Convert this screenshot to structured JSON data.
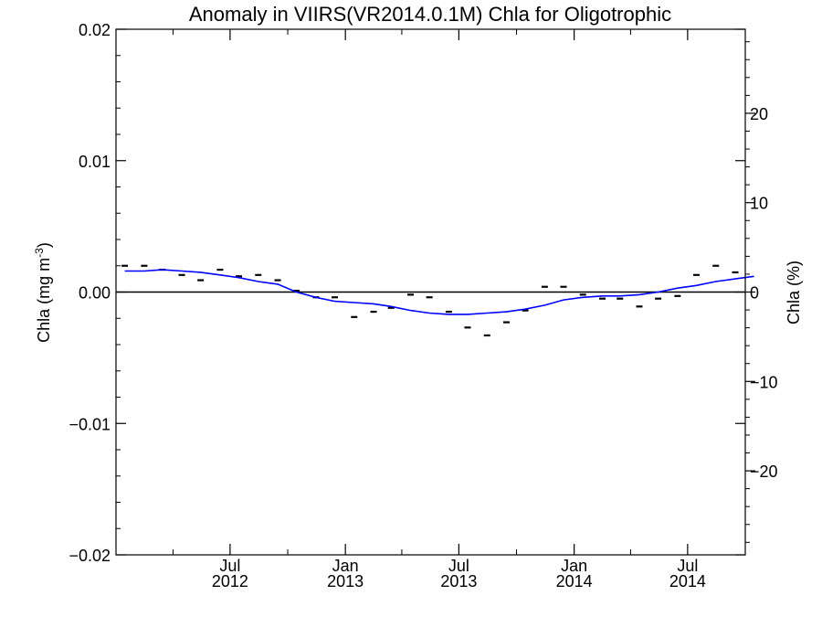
{
  "chart_data": {
    "type": "line",
    "title": "Anomaly in VIIRS(VR2014.0.1M) Chla for Oligotrophic",
    "ylabel_left": "Chla (mg m",
    "ylabel_left_sup": "-3",
    "ylabel_left_close": ")",
    "ylabel_right": "Chla (%)",
    "xlim": [
      "2012-01-01",
      "2014-10-01"
    ],
    "ylim": [
      -0.02,
      0.02
    ],
    "ylim_right": [
      -29.4,
      29.4
    ],
    "left_ticks": [
      {
        "value": 0.02,
        "label": "0.02"
      },
      {
        "value": 0.01,
        "label": "0.01"
      },
      {
        "value": 0.0,
        "label": "0.00"
      },
      {
        "value": -0.01,
        "label": "−0.01"
      },
      {
        "value": -0.02,
        "label": "−0.02"
      }
    ],
    "right_ticks": [
      {
        "value": 20,
        "label": "20"
      },
      {
        "value": 10,
        "label": "10"
      },
      {
        "value": 0,
        "label": "0"
      },
      {
        "value": -10,
        "label": "−10"
      },
      {
        "value": -20,
        "label": "−20"
      }
    ],
    "x_ticks": [
      {
        "date": "2012-07-01",
        "line1": "Jul",
        "line2": "2012"
      },
      {
        "date": "2013-01-01",
        "line1": "Jan",
        "line2": "2013"
      },
      {
        "date": "2013-07-01",
        "line1": "Jul",
        "line2": "2013"
      },
      {
        "date": "2014-01-01",
        "line1": "Jan",
        "line2": "2014"
      },
      {
        "date": "2014-07-01",
        "line1": "Jul",
        "line2": "2014"
      }
    ],
    "x_minor_ticks": [
      "2012-04-01",
      "2012-10-01",
      "2013-04-01",
      "2013-10-01",
      "2014-04-01"
    ],
    "zero_line": 0,
    "series": [
      {
        "role": "monthly anomaly",
        "marker": "dash",
        "color": "#000000",
        "points": [
          {
            "x": "2012-01",
            "y": 0.002
          },
          {
            "x": "2012-02",
            "y": 0.002
          },
          {
            "x": "2012-03",
            "y": 0.0017
          },
          {
            "x": "2012-04",
            "y": 0.0013
          },
          {
            "x": "2012-05",
            "y": 0.0009
          },
          {
            "x": "2012-06",
            "y": 0.0017
          },
          {
            "x": "2012-07",
            "y": 0.0012
          },
          {
            "x": "2012-08",
            "y": 0.0013
          },
          {
            "x": "2012-09",
            "y": 0.0009
          },
          {
            "x": "2012-10",
            "y": 0.0001
          },
          {
            "x": "2012-11",
            "y": -0.0004
          },
          {
            "x": "2012-12",
            "y": -0.0004
          },
          {
            "x": "2013-01",
            "y": -0.0019
          },
          {
            "x": "2013-02",
            "y": -0.0015
          },
          {
            "x": "2013-03",
            "y": -0.0012
          },
          {
            "x": "2013-04",
            "y": -0.0002
          },
          {
            "x": "2013-05",
            "y": -0.0004
          },
          {
            "x": "2013-06",
            "y": -0.0015
          },
          {
            "x": "2013-07",
            "y": -0.0027
          },
          {
            "x": "2013-08",
            "y": -0.0033
          },
          {
            "x": "2013-09",
            "y": -0.0023
          },
          {
            "x": "2013-10",
            "y": -0.0014
          },
          {
            "x": "2013-11",
            "y": 0.0004
          },
          {
            "x": "2013-12",
            "y": 0.0004
          },
          {
            "x": "2014-01",
            "y": -0.0002
          },
          {
            "x": "2014-02",
            "y": -0.0005
          },
          {
            "x": "2014-03",
            "y": -0.0005
          },
          {
            "x": "2014-04",
            "y": -0.0011
          },
          {
            "x": "2014-05",
            "y": -0.0005
          },
          {
            "x": "2014-06",
            "y": -0.0003
          },
          {
            "x": "2014-07",
            "y": 0.0013
          },
          {
            "x": "2014-08",
            "y": 0.002
          },
          {
            "x": "2014-09",
            "y": 0.0015
          }
        ]
      },
      {
        "role": "running mean",
        "marker": "line",
        "color": "#0000ff",
        "points": [
          {
            "x": "2012-01",
            "y": 0.0016
          },
          {
            "x": "2012-02",
            "y": 0.0016
          },
          {
            "x": "2012-03",
            "y": 0.0017
          },
          {
            "x": "2012-04",
            "y": 0.0016
          },
          {
            "x": "2012-05",
            "y": 0.0015
          },
          {
            "x": "2012-06",
            "y": 0.0013
          },
          {
            "x": "2012-07",
            "y": 0.0011
          },
          {
            "x": "2012-08",
            "y": 0.0008
          },
          {
            "x": "2012-09",
            "y": 0.0006
          },
          {
            "x": "2012-10",
            "y": 0.0
          },
          {
            "x": "2012-11",
            "y": -0.0004
          },
          {
            "x": "2012-12",
            "y": -0.0007
          },
          {
            "x": "2013-01",
            "y": -0.0008
          },
          {
            "x": "2013-02",
            "y": -0.0009
          },
          {
            "x": "2013-03",
            "y": -0.0011
          },
          {
            "x": "2013-04",
            "y": -0.0014
          },
          {
            "x": "2013-05",
            "y": -0.0016
          },
          {
            "x": "2013-06",
            "y": -0.0017
          },
          {
            "x": "2013-07",
            "y": -0.0017
          },
          {
            "x": "2013-08",
            "y": -0.0016
          },
          {
            "x": "2013-09",
            "y": -0.0015
          },
          {
            "x": "2013-10",
            "y": -0.0013
          },
          {
            "x": "2013-11",
            "y": -0.001
          },
          {
            "x": "2013-12",
            "y": -0.0006
          },
          {
            "x": "2014-01",
            "y": -0.0004
          },
          {
            "x": "2014-02",
            "y": -0.0003
          },
          {
            "x": "2014-03",
            "y": -0.0003
          },
          {
            "x": "2014-04",
            "y": -0.0002
          },
          {
            "x": "2014-05",
            "y": 0.0
          },
          {
            "x": "2014-06",
            "y": 0.0003
          },
          {
            "x": "2014-07",
            "y": 0.0005
          },
          {
            "x": "2014-08",
            "y": 0.0008
          },
          {
            "x": "2014-09",
            "y": 0.001
          },
          {
            "x": "2014-10",
            "y": 0.0012
          }
        ]
      }
    ]
  }
}
